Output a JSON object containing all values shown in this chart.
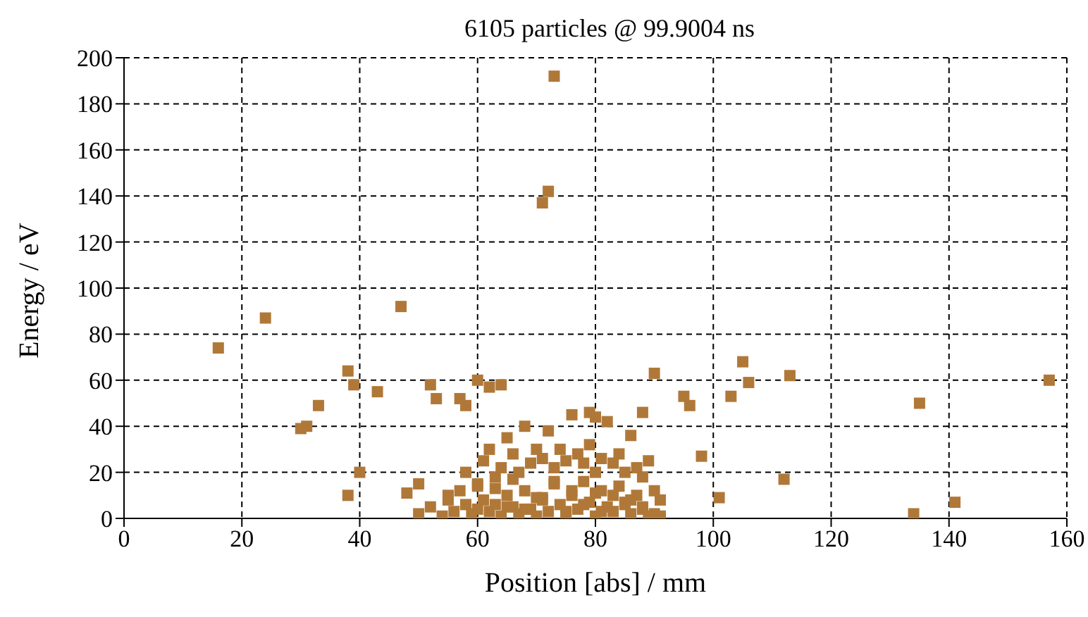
{
  "chart_data": {
    "type": "scatter",
    "title": "6105 particles @ 99.9004 ns",
    "xlabel": "Position [abs]  / mm",
    "ylabel": "Energy / eV",
    "xlim": [
      0,
      160
    ],
    "xticks": [
      0,
      20,
      40,
      60,
      80,
      100,
      120,
      140,
      160
    ],
    "ylim": [
      0,
      200
    ],
    "yticks": [
      0,
      20,
      40,
      60,
      80,
      100,
      120,
      140,
      160,
      180,
      200
    ],
    "grid": true,
    "marker": "square",
    "legend": false,
    "series": [
      {
        "color": "#b07838",
        "x": [
          16,
          24,
          30,
          31,
          33,
          38,
          38,
          39,
          40,
          43,
          47,
          48,
          50,
          52,
          53,
          55,
          57,
          58,
          60,
          62,
          64,
          72,
          71,
          73,
          79,
          80,
          88,
          90,
          95,
          96,
          98,
          101,
          103,
          105,
          106,
          112,
          113,
          134,
          135,
          141,
          157,
          50,
          52,
          54,
          55,
          56,
          57,
          58,
          58,
          59,
          60,
          60,
          61,
          61,
          62,
          62,
          63,
          63,
          64,
          64,
          65,
          65,
          66,
          66,
          67,
          67,
          68,
          68,
          69,
          69,
          70,
          70,
          71,
          71,
          72,
          72,
          73,
          73,
          74,
          74,
          75,
          75,
          76,
          76,
          77,
          77,
          78,
          78,
          79,
          79,
          80,
          80,
          81,
          81,
          82,
          82,
          83,
          83,
          84,
          84,
          85,
          85,
          86,
          86,
          87,
          87,
          88,
          88,
          89,
          89,
          90,
          90,
          91,
          91,
          60,
          65,
          70,
          75,
          80,
          85,
          63,
          68,
          73,
          78,
          83,
          88,
          66,
          71,
          76,
          81,
          86
        ],
        "values": [
          74,
          87,
          39,
          40,
          49,
          64,
          10,
          58,
          20,
          55,
          92,
          11,
          15,
          58,
          52,
          10,
          52,
          49,
          60,
          57,
          58,
          142,
          137,
          192,
          46,
          44,
          46,
          63,
          53,
          49,
          27,
          9,
          53,
          68,
          59,
          17,
          62,
          2,
          50,
          7,
          60,
          2,
          5,
          1,
          8,
          3,
          12,
          6,
          20,
          2,
          15,
          4,
          25,
          8,
          30,
          3,
          18,
          6,
          22,
          1,
          35,
          10,
          28,
          5,
          20,
          2,
          40,
          12,
          24,
          4,
          30,
          1,
          26,
          8,
          38,
          3,
          22,
          15,
          30,
          6,
          25,
          2,
          45,
          10,
          28,
          4,
          24,
          16,
          32,
          7,
          20,
          1,
          26,
          12,
          42,
          5,
          24,
          3,
          28,
          14,
          20,
          6,
          36,
          2,
          22,
          10,
          18,
          4,
          25,
          1,
          12,
          2,
          8,
          1,
          14,
          5,
          9,
          3,
          11,
          7,
          13,
          4,
          16,
          6,
          10,
          5,
          17,
          9,
          12,
          3,
          8
        ]
      }
    ]
  }
}
